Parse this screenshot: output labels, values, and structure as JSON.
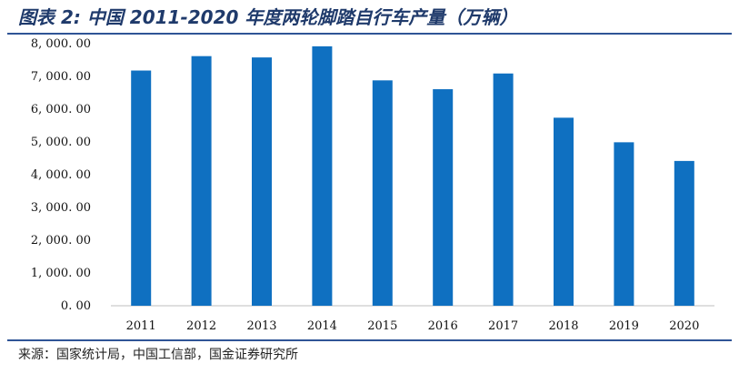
{
  "title": "图表 2:  中国 2011-2020 年度两轮脚踏自行车产量（万辆）",
  "source": "来源：国家统计局，中国工信部，国金证券研究所",
  "colors": {
    "bar": "#0f70c1",
    "rule": "#2f5496",
    "title": "#1f3a6b"
  },
  "chart_data": {
    "type": "bar",
    "title": "",
    "xlabel": "",
    "ylabel": "",
    "categories": [
      "2011",
      "2012",
      "2013",
      "2014",
      "2015",
      "2016",
      "2017",
      "2018",
      "2019",
      "2020"
    ],
    "values": [
      7180,
      7620,
      7580,
      7920,
      6880,
      6610,
      7090,
      5740,
      4990,
      4420
    ],
    "ylim": [
      0,
      8000
    ],
    "yticks": [
      0,
      1000,
      2000,
      3000,
      4000,
      5000,
      6000,
      7000,
      8000
    ],
    "ytick_labels": [
      "0. 00",
      "1, 000. 00",
      "2, 000. 00",
      "3, 000. 00",
      "4, 000. 00",
      "5, 000. 00",
      "6, 000. 00",
      "7, 000. 00",
      "8, 000. 00"
    ],
    "grid": false,
    "legend": "none"
  }
}
